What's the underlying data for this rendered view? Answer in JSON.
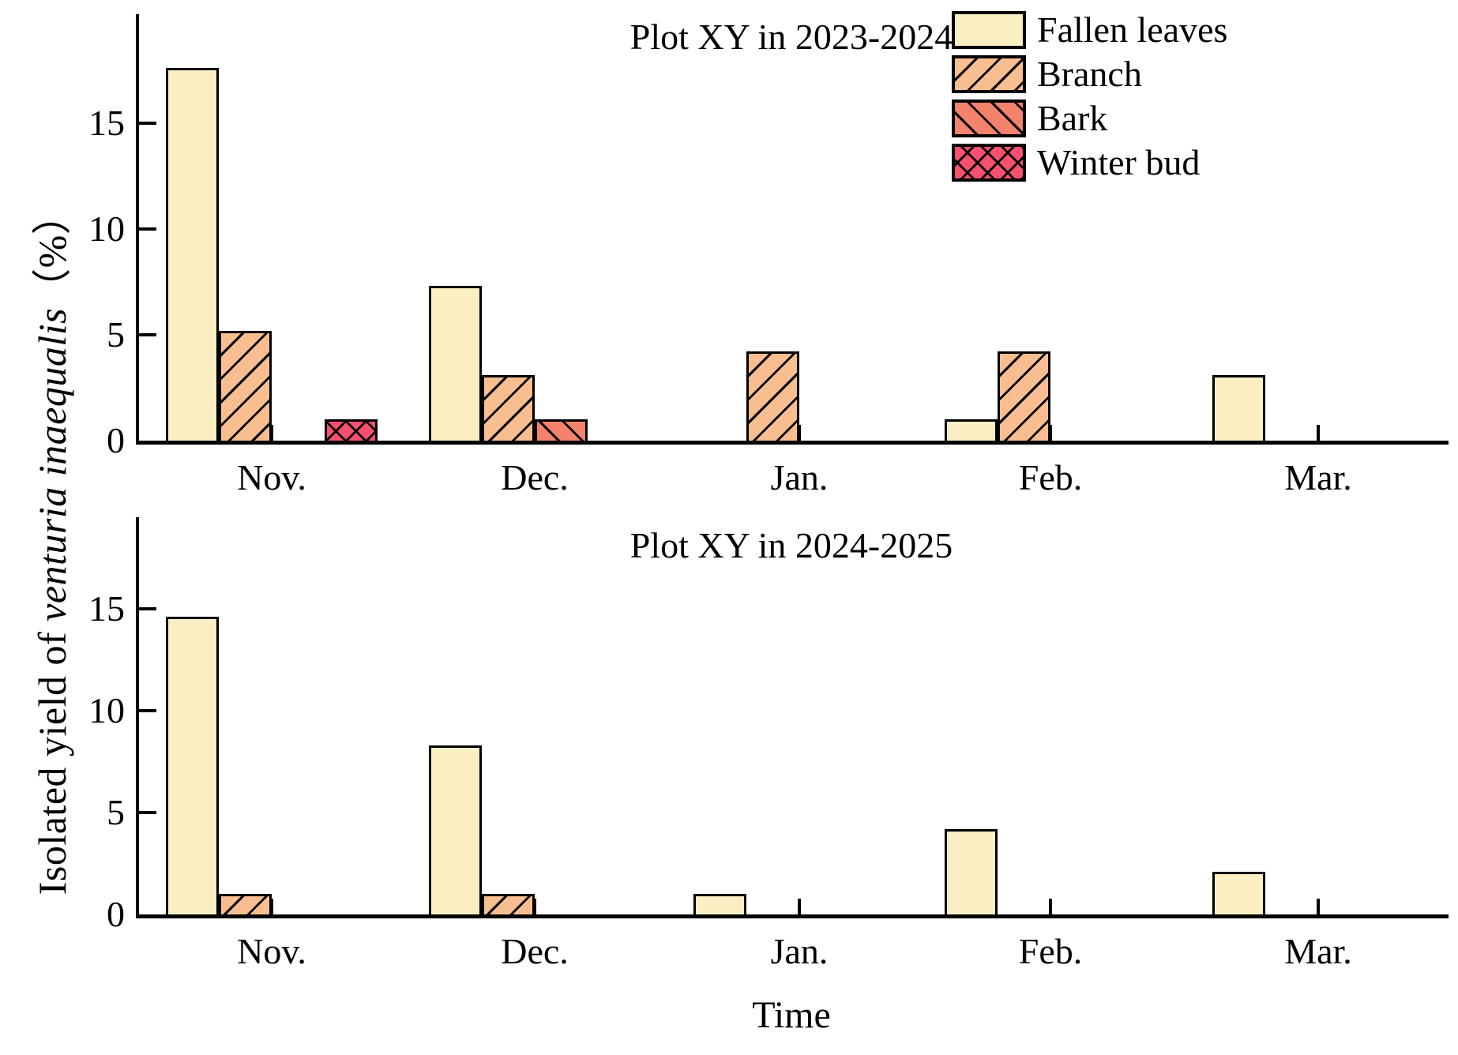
{
  "axes": {
    "y_label_prefix": "Isolated yield of ",
    "y_label_italic": "venturia inaequalis",
    "y_label_suffix": "（%）",
    "x_label": "Time"
  },
  "legend": {
    "position": "top-right",
    "items": [
      {
        "label": "Fallen leaves",
        "pattern": "solid",
        "color": "#FAEFC3"
      },
      {
        "label": "Branch",
        "pattern": "diagonal-up",
        "color": "#F9BE90"
      },
      {
        "label": "Bark",
        "pattern": "diagonal-down",
        "color": "#F5826C"
      },
      {
        "label": "Winter bud",
        "pattern": "crosshatch",
        "color": "#F8506E"
      }
    ]
  },
  "chart_data": [
    {
      "type": "bar",
      "title": "Plot XY in 2023-2024",
      "categories": [
        "Nov.",
        "Dec.",
        "Jan.",
        "Feb.",
        "Mar."
      ],
      "series": [
        {
          "name": "Fallen leaves",
          "values": [
            17.6,
            7.3,
            0,
            1.0,
            3.1
          ]
        },
        {
          "name": "Branch",
          "values": [
            5.2,
            3.1,
            4.2,
            4.2,
            0
          ]
        },
        {
          "name": "Bark",
          "values": [
            0,
            1.0,
            0,
            0,
            0
          ]
        },
        {
          "name": "Winter bud",
          "values": [
            1.0,
            0,
            0,
            0,
            0
          ]
        }
      ],
      "ylabel": "Isolated yield of venturia inaequalis（%）",
      "xlabel": "",
      "yticks": [
        0,
        5,
        10,
        15
      ],
      "ylim": [
        0,
        20
      ],
      "grid": false
    },
    {
      "type": "bar",
      "title": "Plot XY in 2024-2025",
      "categories": [
        "Nov.",
        "Dec.",
        "Jan.",
        "Feb.",
        "Mar."
      ],
      "series": [
        {
          "name": "Fallen leaves",
          "values": [
            14.6,
            8.3,
            1.0,
            4.2,
            2.1
          ]
        },
        {
          "name": "Branch",
          "values": [
            1.0,
            1.0,
            0,
            0,
            0
          ]
        },
        {
          "name": "Bark",
          "values": [
            0,
            0,
            0,
            0,
            0
          ]
        },
        {
          "name": "Winter bud",
          "values": [
            0,
            0,
            0,
            0,
            0
          ]
        }
      ],
      "ylabel": "Isolated yield of venturia inaequalis（%）",
      "xlabel": "Time",
      "yticks": [
        0,
        5,
        10,
        15
      ],
      "ylim": [
        0,
        20
      ],
      "grid": false
    }
  ]
}
